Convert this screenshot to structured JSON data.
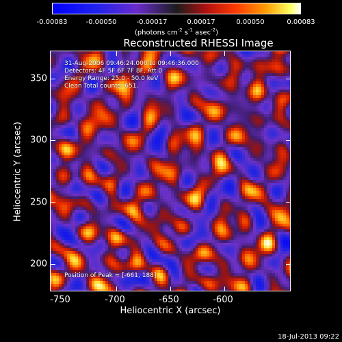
{
  "colorbar": {
    "ticks": [
      "-0.00083",
      "-0.00050",
      "-0.00017",
      "0.00017",
      "0.00050",
      "0.00083"
    ],
    "units": "(photons cm",
    "units_sup1": "-2",
    "units_mid": " s",
    "units_sup2": "-1",
    "units_mid2": " asec",
    "units_sup3": "-2",
    "units_end": ")"
  },
  "title": "Reconstructed RHESSI Image",
  "overlay": {
    "time_range": "31-Aug-2006 09:46:24.000 to 09:46:36.000",
    "detectors": "Detectors: 4F 5F 6F 7F 8F, Att 0",
    "energy": "Energy Range: 25.0 - 50.0 keV",
    "clean": "Clean    Total counts: 651.",
    "peak": "Position of Peak = [-661, 188]"
  },
  "axes": {
    "xlabel": "Heliocentric X (arcsec)",
    "ylabel": "Heliocentric Y (arcsec)",
    "xticks": [
      "-750",
      "-700",
      "-650",
      "-600"
    ],
    "yticks": [
      "350",
      "300",
      "250",
      "200"
    ]
  },
  "footer": "18-Jul-2013 09:22",
  "colors": {
    "background": "#000000",
    "negative": "#0000ff",
    "zero": "#3b1c6e",
    "positive_peak": "#ffffff"
  }
}
